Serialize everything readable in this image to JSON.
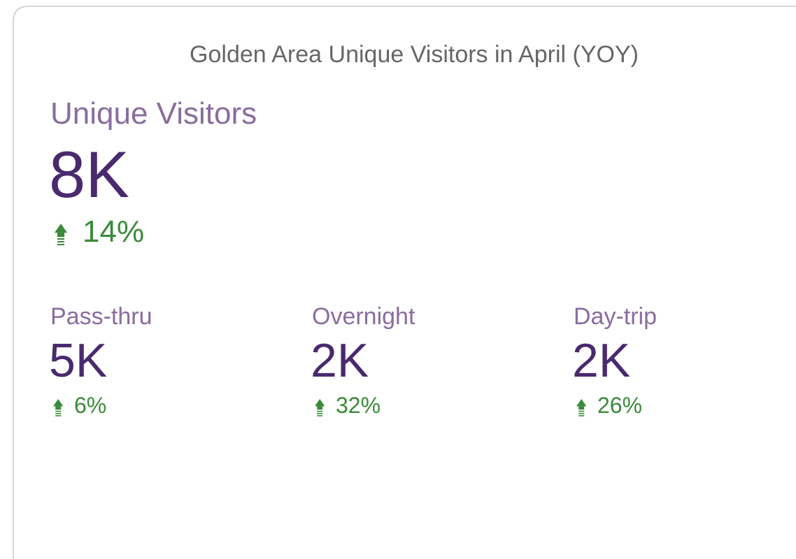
{
  "title": "Golden Area Unique Visitors in April (YOY)",
  "primary": {
    "label": "Unique Visitors",
    "value": "8K",
    "change": "14%"
  },
  "breakdown": [
    {
      "label": "Pass-thru",
      "value": "5K",
      "change": "6%"
    },
    {
      "label": "Overnight",
      "value": "2K",
      "change": "32%"
    },
    {
      "label": "Day-trip",
      "value": "2K",
      "change": "26%"
    }
  ]
}
